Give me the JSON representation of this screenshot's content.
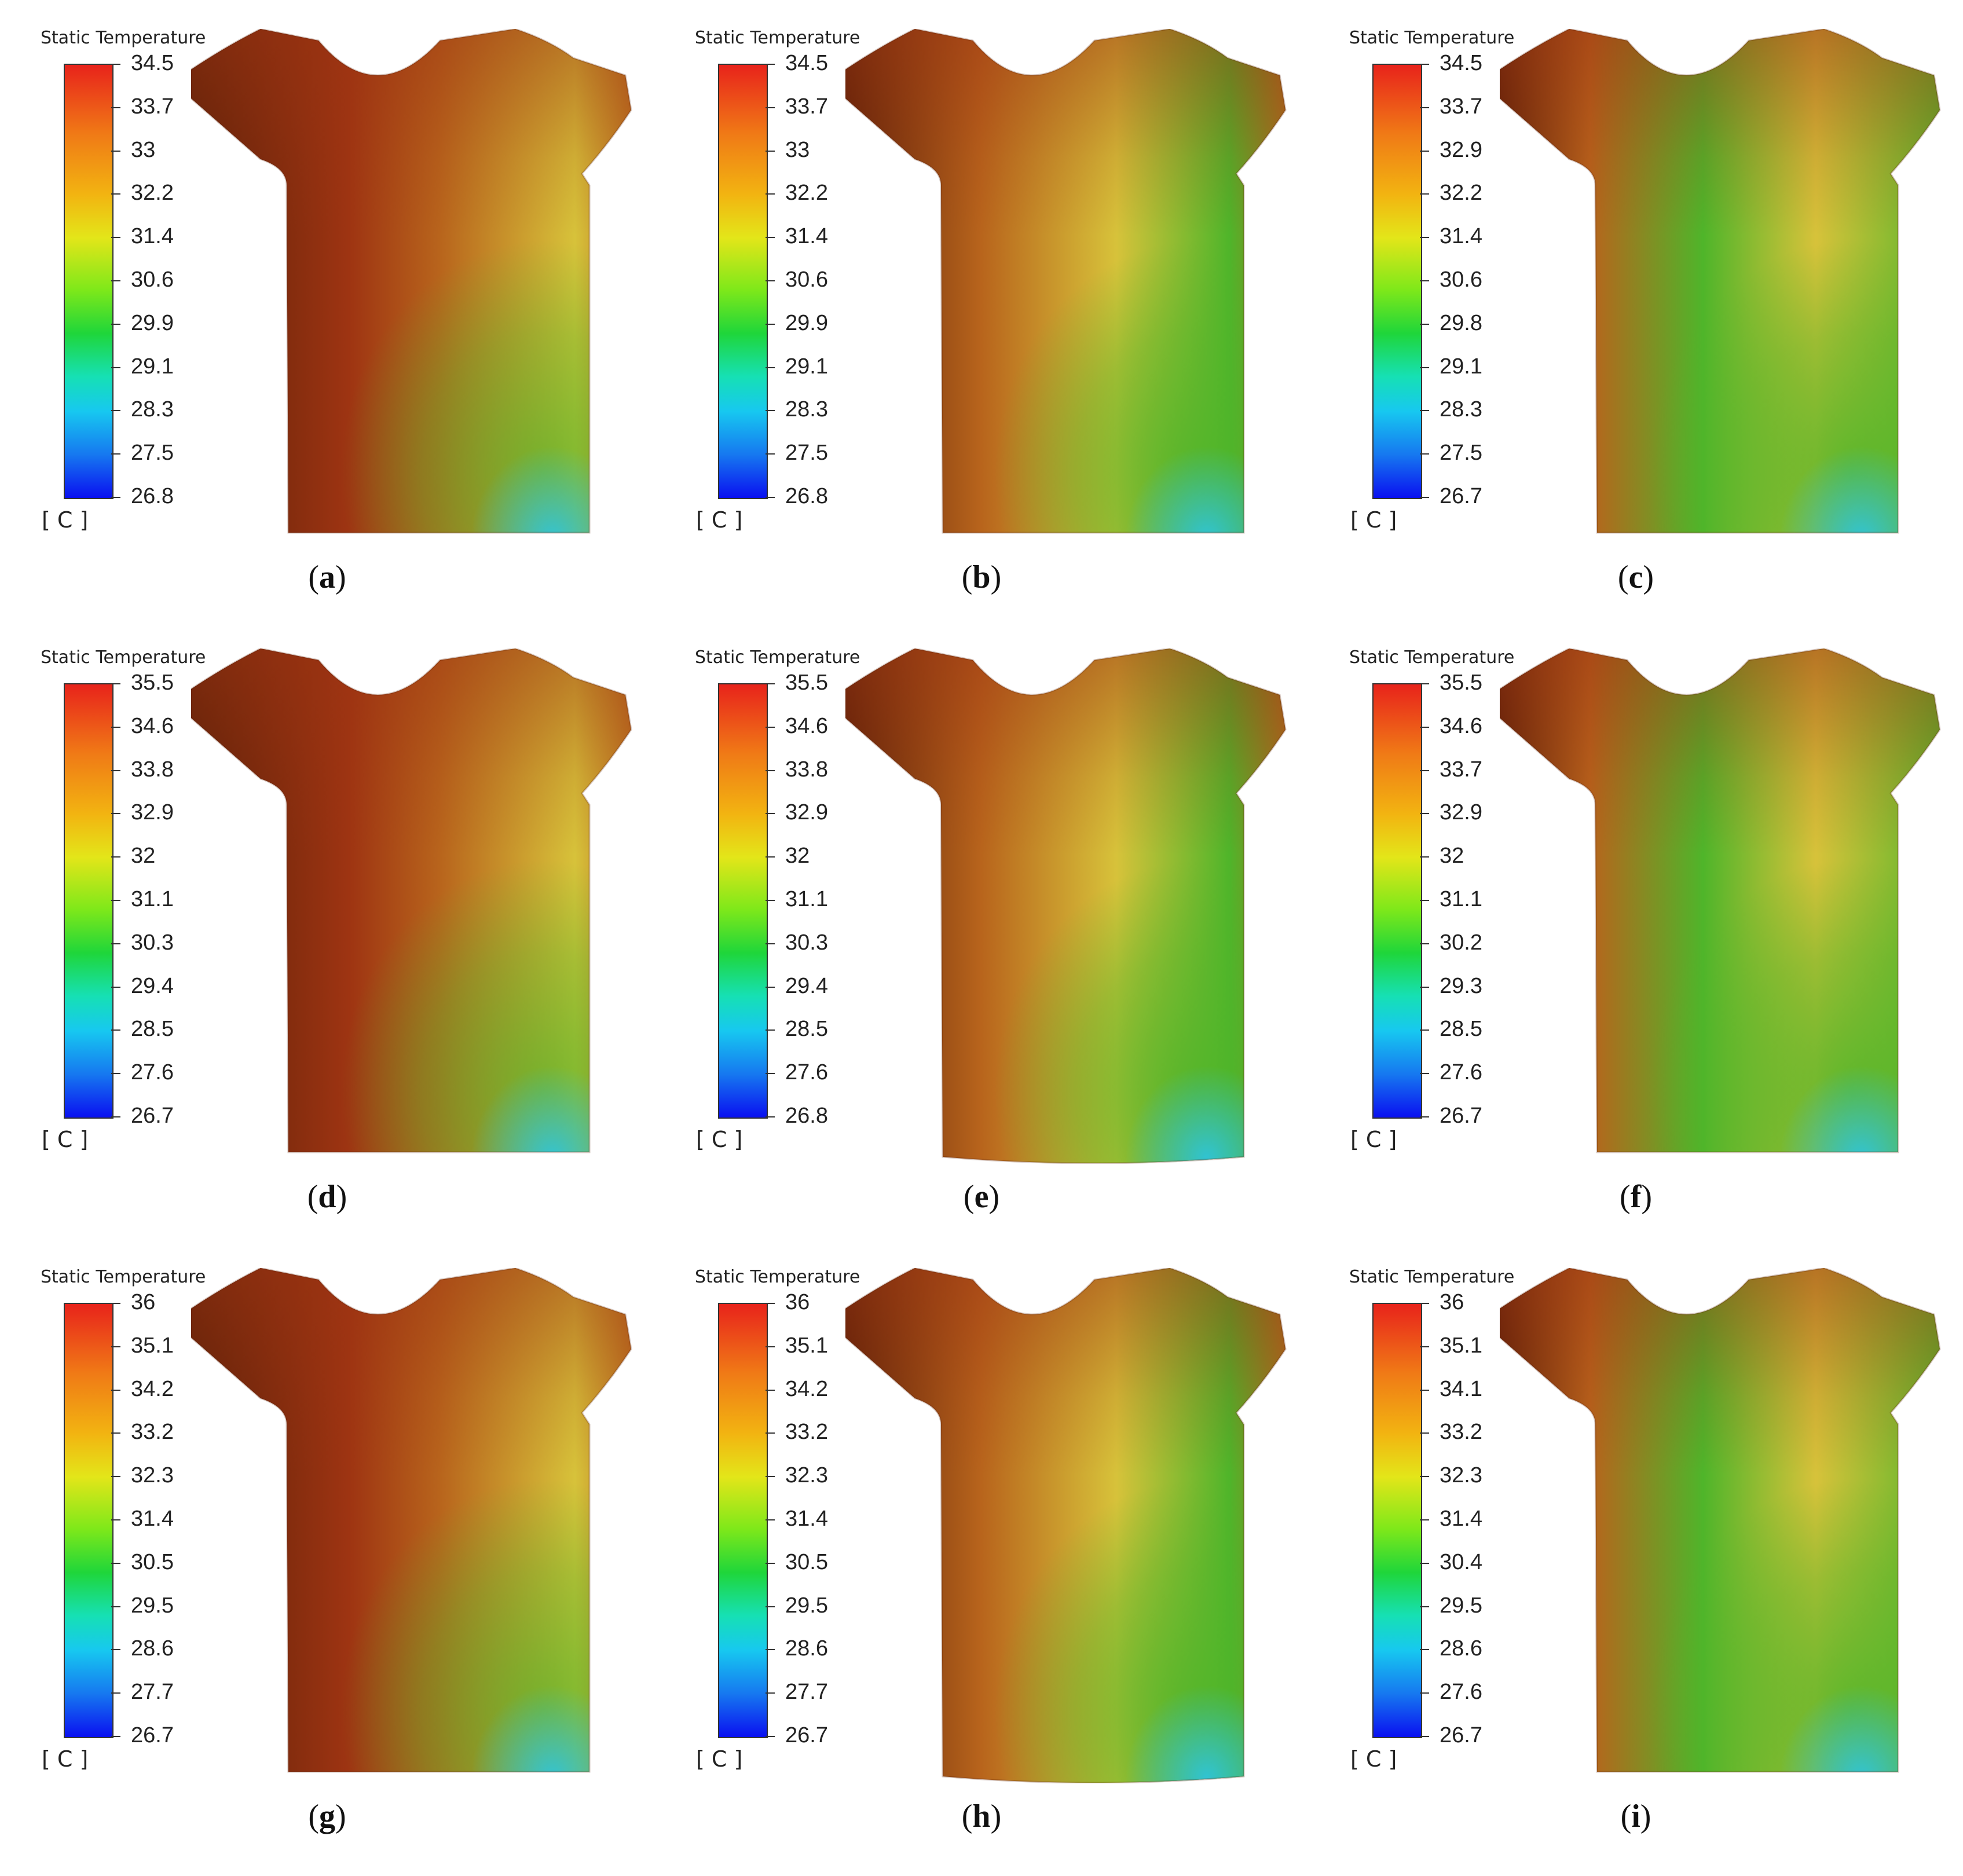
{
  "colors": {
    "background": "#ffffff",
    "warm_dark": "#5a2008",
    "warm_red": "#9e3412",
    "warm_mid": "#b8641c",
    "warm_yellow": "#d7c23a",
    "cool_green": "#4fb52a",
    "cool_cyan": "#2ec4dc",
    "cool_blue": "#1a64e6"
  },
  "panels": [
    {
      "label": "a",
      "title": "Static Temperature",
      "unit": "[ C ]",
      "ticks": [
        "34.5",
        "33.7",
        "33",
        "32.2",
        "31.4",
        "30.6",
        "29.9",
        "29.1",
        "28.3",
        "27.5",
        "26.8"
      ],
      "pattern": "warm-left-cool-lower-right",
      "hem": "straight"
    },
    {
      "label": "b",
      "title": "Static Temperature",
      "unit": "[ C ]",
      "ticks": [
        "34.5",
        "33.7",
        "33",
        "32.2",
        "31.4",
        "30.6",
        "29.9",
        "29.1",
        "28.3",
        "27.5",
        "26.8"
      ],
      "pattern": "mixed",
      "hem": "straight"
    },
    {
      "label": "c",
      "title": "Static Temperature",
      "unit": "[ C ]",
      "ticks": [
        "34.5",
        "33.7",
        "32.9",
        "32.2",
        "31.4",
        "30.6",
        "29.8",
        "29.1",
        "28.3",
        "27.5",
        "26.7"
      ],
      "pattern": "cooler-overall",
      "hem": "straight"
    },
    {
      "label": "d",
      "title": "Static Temperature",
      "unit": "[ C ]",
      "ticks": [
        "35.5",
        "34.6",
        "33.8",
        "32.9",
        "32",
        "31.1",
        "30.3",
        "29.4",
        "28.5",
        "27.6",
        "26.7"
      ],
      "pattern": "warm-left-cool-lower-right",
      "hem": "straight"
    },
    {
      "label": "e",
      "title": "Static Temperature",
      "unit": "[ C ]",
      "ticks": [
        "35.5",
        "34.6",
        "33.8",
        "32.9",
        "32",
        "31.1",
        "30.3",
        "29.4",
        "28.5",
        "27.6",
        "26.8"
      ],
      "pattern": "mixed",
      "hem": "curved"
    },
    {
      "label": "f",
      "title": "Static Temperature",
      "unit": "[ C ]",
      "ticks": [
        "35.5",
        "34.6",
        "33.7",
        "32.9",
        "32",
        "31.1",
        "30.2",
        "29.3",
        "28.5",
        "27.6",
        "26.7"
      ],
      "pattern": "cooler-overall",
      "hem": "straight"
    },
    {
      "label": "g",
      "title": "Static Temperature",
      "unit": "[ C ]",
      "ticks": [
        "36",
        "35.1",
        "34.2",
        "33.2",
        "32.3",
        "31.4",
        "30.5",
        "29.5",
        "28.6",
        "27.7",
        "26.7"
      ],
      "pattern": "warm-left-cool-lower-right",
      "hem": "straight"
    },
    {
      "label": "h",
      "title": "Static Temperature",
      "unit": "[ C ]",
      "ticks": [
        "36",
        "35.1",
        "34.2",
        "33.2",
        "32.3",
        "31.4",
        "30.5",
        "29.5",
        "28.6",
        "27.7",
        "26.7"
      ],
      "pattern": "mixed",
      "hem": "curved"
    },
    {
      "label": "i",
      "title": "Static Temperature",
      "unit": "[ C ]",
      "ticks": [
        "36",
        "35.1",
        "34.1",
        "33.2",
        "32.3",
        "31.4",
        "30.4",
        "29.5",
        "28.6",
        "27.6",
        "26.7"
      ],
      "pattern": "cooler-overall",
      "hem": "straight"
    }
  ]
}
